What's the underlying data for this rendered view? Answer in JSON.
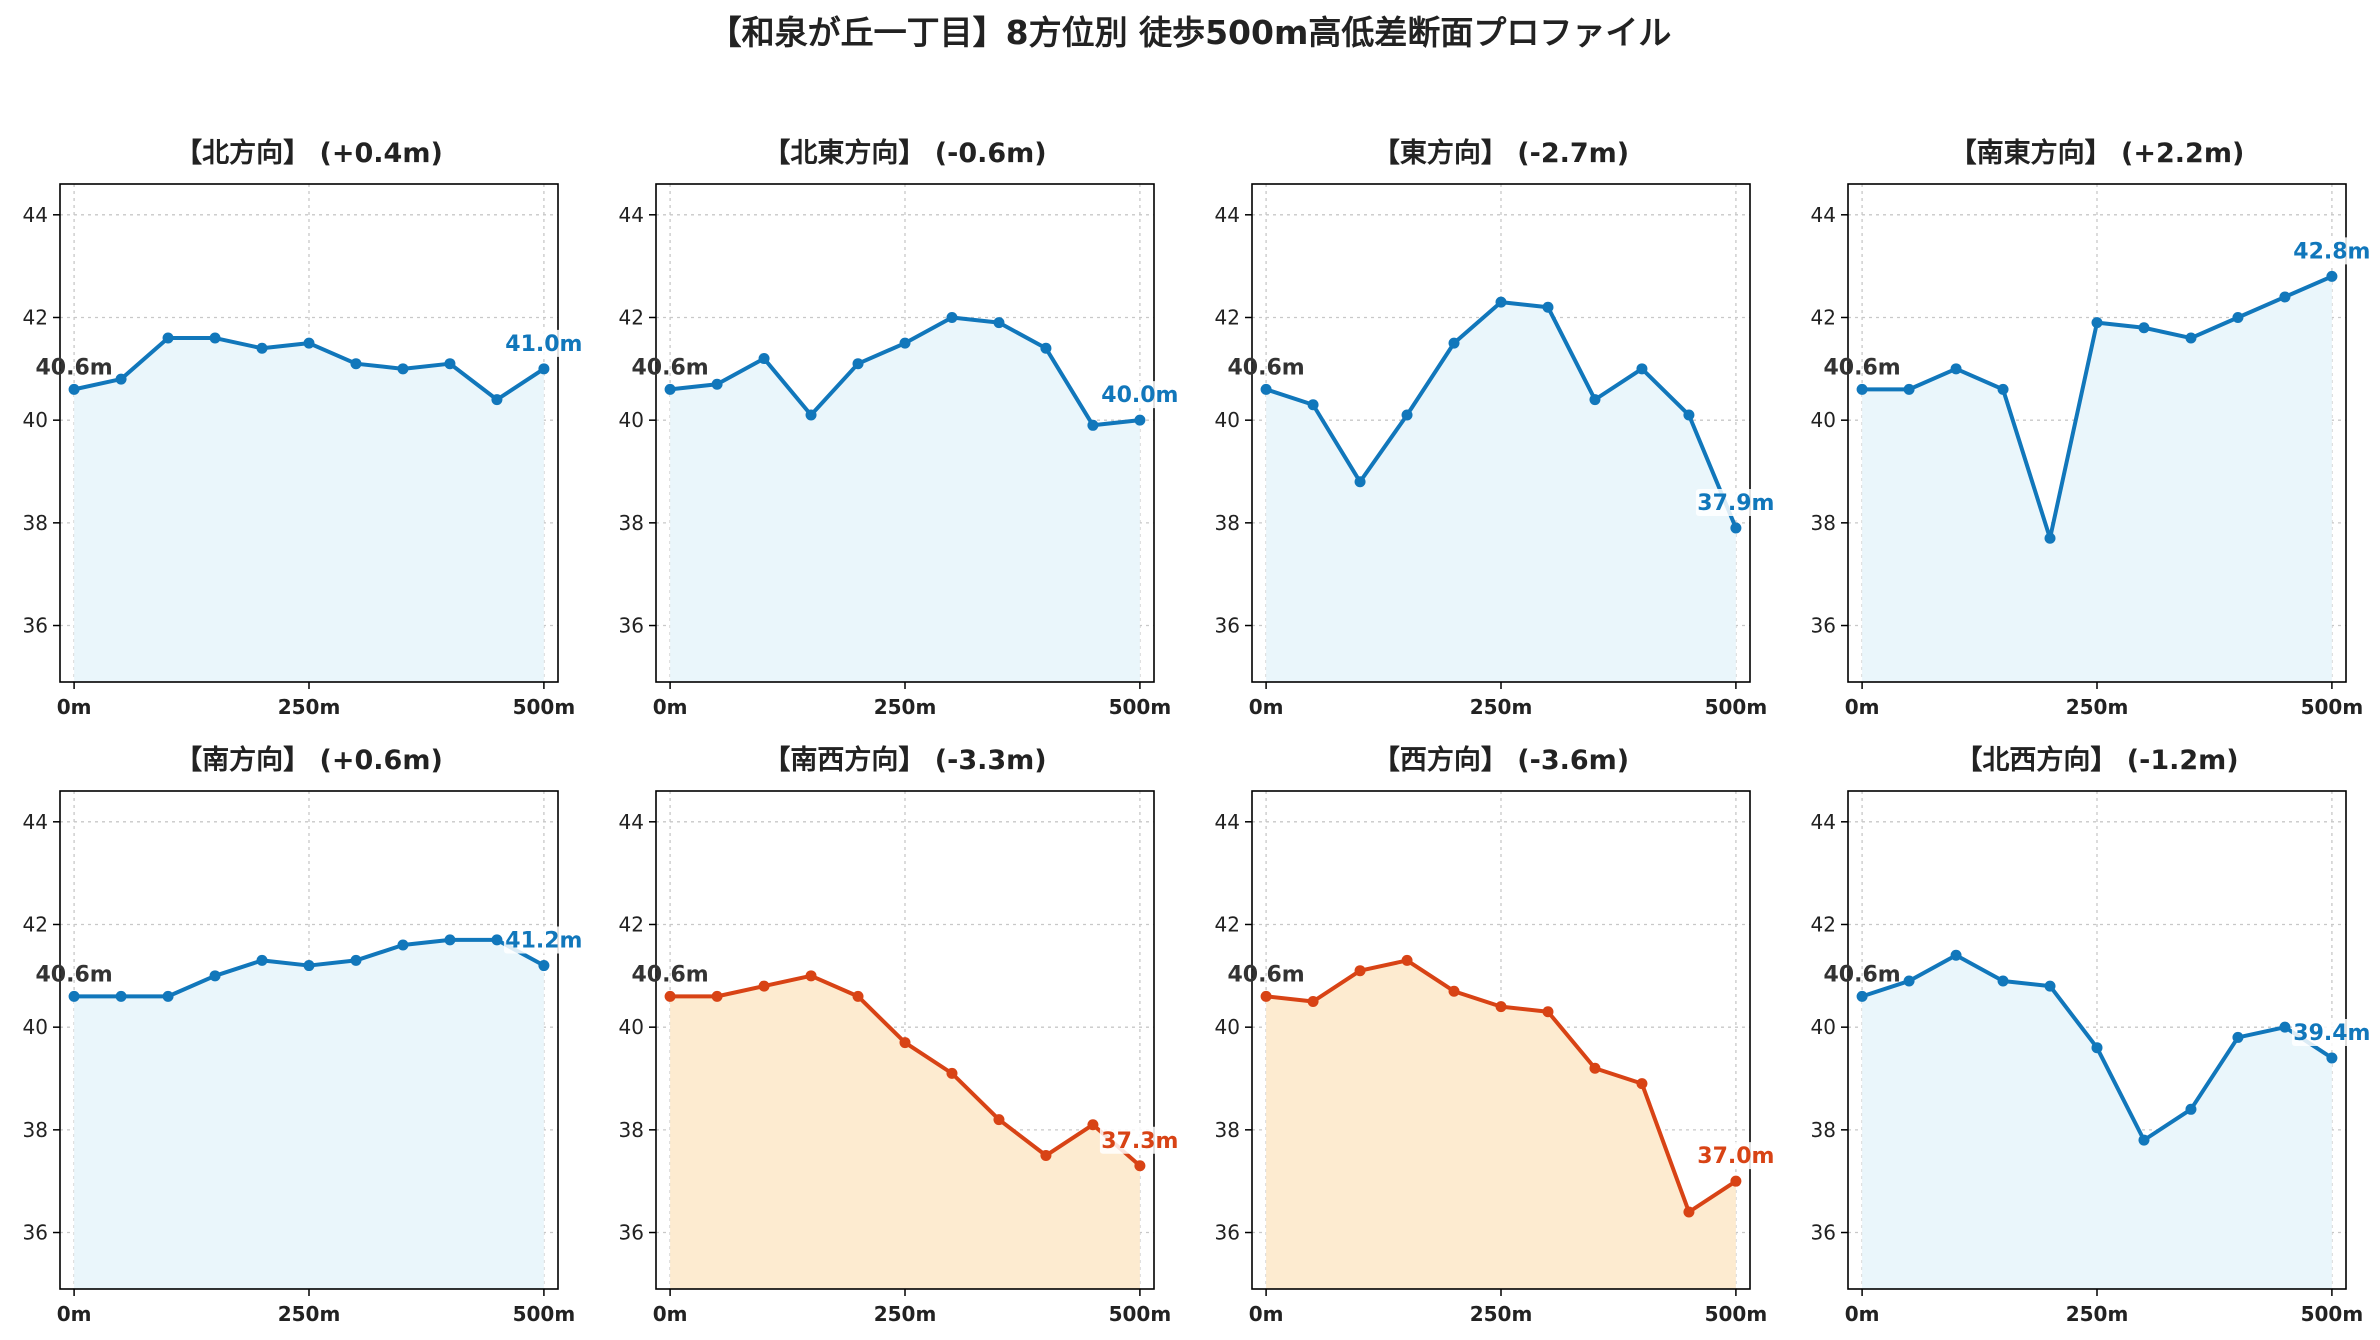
{
  "title": "【和泉が丘一丁目】8方位別 徒歩500m高低差断面プロファイル",
  "colors": {
    "up_line": "#1177bb",
    "up_fill": "#eaf6fb",
    "down_line": "#d84315",
    "down_fill": "#fdebd0"
  },
  "chart_data": [
    {
      "type": "area",
      "title": "【北方向】 (+0.4m)",
      "trend": "up",
      "x": [
        0,
        50,
        100,
        150,
        200,
        250,
        300,
        350,
        400,
        450,
        500
      ],
      "y": [
        40.6,
        40.8,
        41.6,
        41.6,
        41.4,
        41.5,
        41.1,
        41.0,
        41.1,
        40.4,
        41.0
      ],
      "start_label": "40.6m",
      "end_label": "41.0m"
    },
    {
      "type": "area",
      "title": "【北東方向】 (-0.6m)",
      "trend": "up",
      "x": [
        0,
        50,
        100,
        150,
        200,
        250,
        300,
        350,
        400,
        450,
        500
      ],
      "y": [
        40.6,
        40.7,
        41.2,
        40.1,
        41.1,
        41.5,
        42.0,
        41.9,
        41.4,
        39.9,
        40.0
      ],
      "start_label": "40.6m",
      "end_label": "40.0m"
    },
    {
      "type": "area",
      "title": "【東方向】 (-2.7m)",
      "trend": "up",
      "x": [
        0,
        50,
        100,
        150,
        200,
        250,
        300,
        350,
        400,
        450,
        500
      ],
      "y": [
        40.6,
        40.3,
        38.8,
        40.1,
        41.5,
        42.3,
        42.2,
        40.4,
        41.0,
        40.1,
        37.9
      ],
      "start_label": "40.6m",
      "end_label": "37.9m"
    },
    {
      "type": "area",
      "title": "【南東方向】 (+2.2m)",
      "trend": "up",
      "x": [
        0,
        50,
        100,
        150,
        200,
        250,
        300,
        350,
        400,
        450,
        500
      ],
      "y": [
        40.6,
        40.6,
        41.0,
        40.6,
        37.7,
        41.9,
        41.8,
        41.6,
        42.0,
        42.4,
        42.8
      ],
      "start_label": "40.6m",
      "end_label": "42.8m"
    },
    {
      "type": "area",
      "title": "【南方向】 (+0.6m)",
      "trend": "up",
      "x": [
        0,
        50,
        100,
        150,
        200,
        250,
        300,
        350,
        400,
        450,
        500
      ],
      "y": [
        40.6,
        40.6,
        40.6,
        41.0,
        41.3,
        41.2,
        41.3,
        41.6,
        41.7,
        41.7,
        41.2
      ],
      "start_label": "40.6m",
      "end_label": "41.2m"
    },
    {
      "type": "area",
      "title": "【南西方向】 (-3.3m)",
      "trend": "down",
      "x": [
        0,
        50,
        100,
        150,
        200,
        250,
        300,
        350,
        400,
        450,
        500
      ],
      "y": [
        40.6,
        40.6,
        40.8,
        41.0,
        40.6,
        39.7,
        39.1,
        38.2,
        37.5,
        38.1,
        37.3
      ],
      "start_label": "40.6m",
      "end_label": "37.3m"
    },
    {
      "type": "area",
      "title": "【西方向】 (-3.6m)",
      "trend": "down",
      "x": [
        0,
        50,
        100,
        150,
        200,
        250,
        300,
        350,
        400,
        450,
        500
      ],
      "y": [
        40.6,
        40.5,
        41.1,
        41.3,
        40.7,
        40.4,
        40.3,
        39.2,
        38.9,
        36.4,
        37.0
      ],
      "start_label": "40.6m",
      "end_label": "37.0m"
    },
    {
      "type": "area",
      "title": "【北西方向】 (-1.2m)",
      "trend": "up",
      "x": [
        0,
        50,
        100,
        150,
        200,
        250,
        300,
        350,
        400,
        450,
        500
      ],
      "y": [
        40.6,
        40.9,
        41.4,
        40.9,
        40.8,
        39.6,
        37.8,
        38.4,
        39.8,
        40.0,
        39.4
      ],
      "start_label": "40.6m",
      "end_label": "39.4m"
    }
  ],
  "axes": {
    "ylim": [
      34.9,
      44.6
    ],
    "xlim": [
      -15,
      515
    ],
    "yticks": [
      "36",
      "38",
      "40",
      "42",
      "44"
    ],
    "xticks": [
      "0m",
      "250m",
      "500m"
    ],
    "grid": true
  }
}
